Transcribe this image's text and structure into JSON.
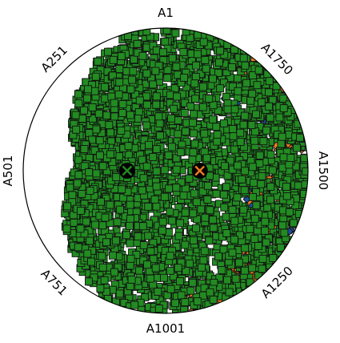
{
  "chart_data": {
    "type": "scatter",
    "projection": "polar",
    "angular_labels": [
      {
        "text": "A1",
        "angle_deg": 0
      },
      {
        "text": "A251",
        "angle_deg": 315
      },
      {
        "text": "A501",
        "angle_deg": 270
      },
      {
        "text": "A751",
        "angle_deg": 225
      },
      {
        "text": "A1001",
        "angle_deg": 180
      },
      {
        "text": "A1250",
        "angle_deg": 135
      },
      {
        "text": "A1500",
        "angle_deg": 90
      },
      {
        "text": "A1750",
        "angle_deg": 45
      }
    ],
    "series": [
      {
        "marker": "square",
        "color": "#228b22",
        "region": "full disc",
        "centroid": {
          "angle_deg": 270,
          "radius": 0.27
        }
      },
      {
        "marker": "diamond",
        "color": "#f47c20",
        "region": "upper-right edge",
        "centroid": {
          "angle_deg": 90,
          "radius": 0.24
        }
      },
      {
        "marker": "diamond",
        "color": "#1f4e9c",
        "region": "upper-right edge (sparse)"
      }
    ],
    "legend": "none",
    "grid": false
  }
}
